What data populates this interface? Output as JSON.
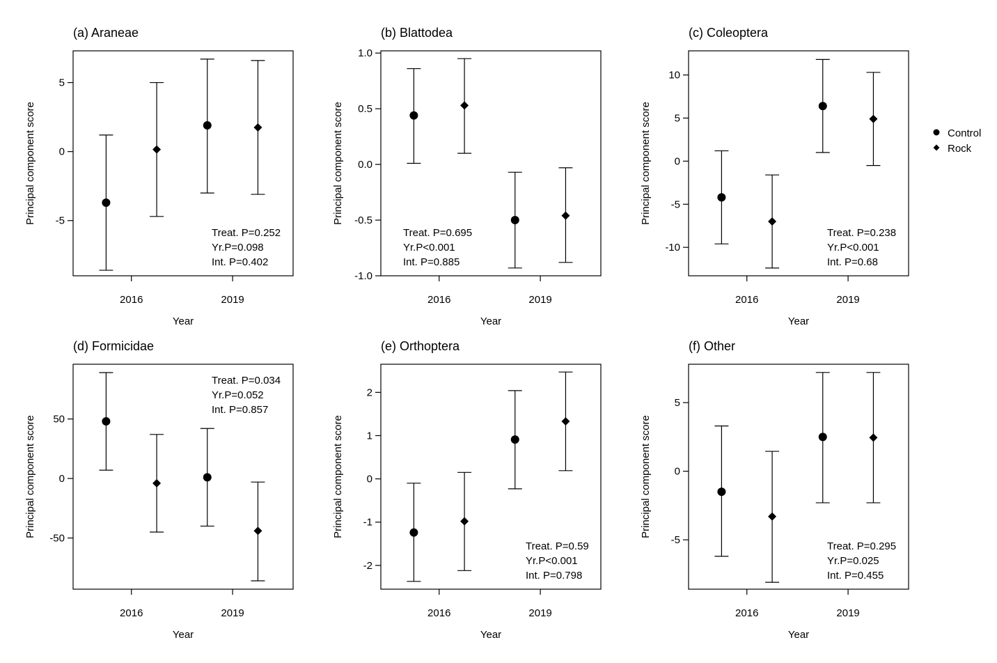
{
  "chart_data": [
    {
      "type": "scatter",
      "title": "(a) Araneae",
      "xlabel": "Year",
      "ylabel": "Principal component score",
      "categories": [
        "2016",
        "2019"
      ],
      "ylim": [
        -9,
        7.3
      ],
      "yticks": [
        -5,
        0,
        5
      ],
      "ytick_labels": [
        "-5",
        "0",
        "5"
      ],
      "series": [
        {
          "name": "Control",
          "points": [
            {
              "year": "2016",
              "mean": -3.7,
              "lower": -8.6,
              "upper": 1.2
            },
            {
              "year": "2019",
              "mean": 1.9,
              "lower": -3.0,
              "upper": 6.7
            }
          ]
        },
        {
          "name": "Rock",
          "points": [
            {
              "year": "2016",
              "mean": 0.15,
              "lower": -4.7,
              "upper": 5.0
            },
            {
              "year": "2019",
              "mean": 1.75,
              "lower": -3.1,
              "upper": 6.6
            }
          ]
        }
      ],
      "stats": [
        "Treat. P=0.252",
        "Yr.P=0.098",
        "Int. P=0.402"
      ],
      "stats_position": "bottom-right"
    },
    {
      "type": "scatter",
      "title": "(b) Blattodea",
      "xlabel": "Year",
      "ylabel": "Principal component score",
      "categories": [
        "2016",
        "2019"
      ],
      "ylim": [
        -1.0,
        1.02
      ],
      "yticks": [
        -1.0,
        -0.5,
        0.0,
        0.5,
        1.0
      ],
      "ytick_labels": [
        "-1.0",
        "-0.5",
        "0.0",
        "0.5",
        "1.0"
      ],
      "series": [
        {
          "name": "Control",
          "points": [
            {
              "year": "2016",
              "mean": 0.44,
              "lower": 0.01,
              "upper": 0.86
            },
            {
              "year": "2019",
              "mean": -0.5,
              "lower": -0.93,
              "upper": -0.07
            }
          ]
        },
        {
          "name": "Rock",
          "points": [
            {
              "year": "2016",
              "mean": 0.53,
              "lower": 0.1,
              "upper": 0.95
            },
            {
              "year": "2019",
              "mean": -0.46,
              "lower": -0.88,
              "upper": -0.03
            }
          ]
        }
      ],
      "stats": [
        "Treat. P=0.695",
        "Yr.P<0.001",
        "Int. P=0.885"
      ],
      "stats_position": "bottom-left"
    },
    {
      "type": "scatter",
      "title": "(c) Coleoptera",
      "xlabel": "Year",
      "ylabel": "Principal component score",
      "categories": [
        "2016",
        "2019"
      ],
      "ylim": [
        -13.3,
        12.8
      ],
      "yticks": [
        -10,
        -5,
        0,
        5,
        10
      ],
      "ytick_labels": [
        "-10",
        "-5",
        "0",
        "5",
        "10"
      ],
      "series": [
        {
          "name": "Control",
          "points": [
            {
              "year": "2016",
              "mean": -4.2,
              "lower": -9.6,
              "upper": 1.2
            },
            {
              "year": "2019",
              "mean": 6.4,
              "lower": 1.0,
              "upper": 11.8
            }
          ]
        },
        {
          "name": "Rock",
          "points": [
            {
              "year": "2016",
              "mean": -7.0,
              "lower": -12.4,
              "upper": -1.6
            },
            {
              "year": "2019",
              "mean": 4.9,
              "lower": -0.5,
              "upper": 10.3
            }
          ]
        }
      ],
      "stats": [
        "Treat. P=0.238",
        "Yr.P<0.001",
        "Int. P=0.68"
      ],
      "stats_position": "bottom-right"
    },
    {
      "type": "scatter",
      "title": "(d) Formicidae",
      "xlabel": "Year",
      "ylabel": "Principal component score",
      "categories": [
        "2016",
        "2019"
      ],
      "ylim": [
        -93,
        96
      ],
      "yticks": [
        -50,
        0,
        50
      ],
      "ytick_labels": [
        "-50",
        "0",
        "50"
      ],
      "series": [
        {
          "name": "Control",
          "points": [
            {
              "year": "2016",
              "mean": 48,
              "lower": 7,
              "upper": 89
            },
            {
              "year": "2019",
              "mean": 1,
              "lower": -40,
              "upper": 42
            }
          ]
        },
        {
          "name": "Rock",
          "points": [
            {
              "year": "2016",
              "mean": -4,
              "lower": -45,
              "upper": 37
            },
            {
              "year": "2019",
              "mean": -44,
              "lower": -86,
              "upper": -3
            }
          ]
        }
      ],
      "stats": [
        "Treat. P=0.034",
        "Yr.P=0.052",
        "Int. P=0.857"
      ],
      "stats_position": "top-right"
    },
    {
      "type": "scatter",
      "title": "(e) Orthoptera",
      "xlabel": "Year",
      "ylabel": "Principal component score",
      "categories": [
        "2016",
        "2019"
      ],
      "ylim": [
        -2.55,
        2.65
      ],
      "yticks": [
        -2,
        -1,
        0,
        1,
        2
      ],
      "ytick_labels": [
        "-2",
        "-1",
        "0",
        "1",
        "2"
      ],
      "series": [
        {
          "name": "Control",
          "points": [
            {
              "year": "2016",
              "mean": -1.24,
              "lower": -2.37,
              "upper": -0.1
            },
            {
              "year": "2019",
              "mean": 0.91,
              "lower": -0.23,
              "upper": 2.04
            }
          ]
        },
        {
          "name": "Rock",
          "points": [
            {
              "year": "2016",
              "mean": -0.98,
              "lower": -2.12,
              "upper": 0.15
            },
            {
              "year": "2019",
              "mean": 1.33,
              "lower": 0.19,
              "upper": 2.47
            }
          ]
        }
      ],
      "stats": [
        "Treat. P=0.59",
        "Yr.P<0.001",
        "Int. P=0.798"
      ],
      "stats_position": "bottom-right"
    },
    {
      "type": "scatter",
      "title": "(f) Other",
      "xlabel": "Year",
      "ylabel": "Principal component score",
      "categories": [
        "2016",
        "2019"
      ],
      "ylim": [
        -8.6,
        7.8
      ],
      "yticks": [
        -5,
        0,
        5
      ],
      "ytick_labels": [
        "-5",
        "0",
        "5"
      ],
      "series": [
        {
          "name": "Control",
          "points": [
            {
              "year": "2016",
              "mean": -1.5,
              "lower": -6.2,
              "upper": 3.3
            },
            {
              "year": "2019",
              "mean": 2.5,
              "lower": -2.3,
              "upper": 7.2
            }
          ]
        },
        {
          "name": "Rock",
          "points": [
            {
              "year": "2016",
              "mean": -3.3,
              "lower": -8.1,
              "upper": 1.45
            },
            {
              "year": "2019",
              "mean": 2.45,
              "lower": -2.3,
              "upper": 7.2
            }
          ]
        }
      ],
      "stats": [
        "Treat. P=0.295",
        "Yr.P=0.025",
        "Int. P=0.455"
      ],
      "stats_position": "bottom-right"
    }
  ],
  "legend": {
    "position": "right",
    "items": [
      {
        "label": "Control",
        "marker": "circle"
      },
      {
        "label": "Rock",
        "marker": "diamond"
      }
    ]
  }
}
